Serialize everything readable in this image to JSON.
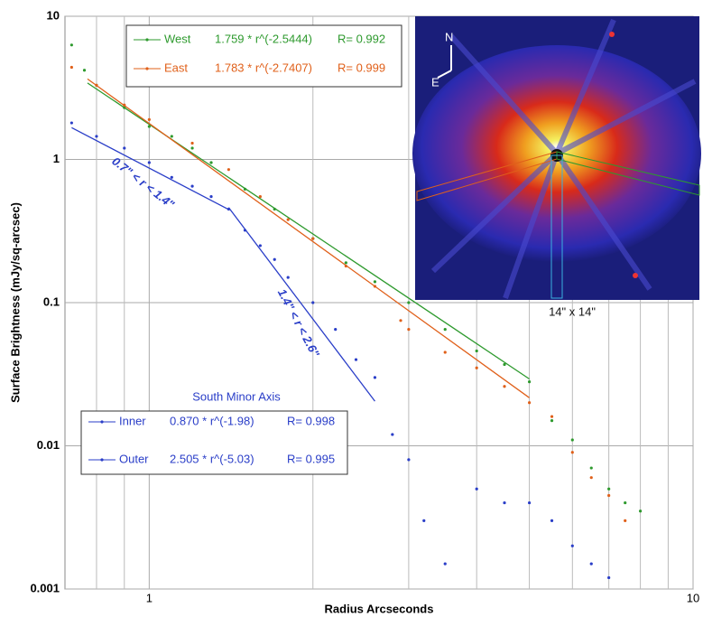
{
  "chart_data": {
    "type": "scatter",
    "xlabel": "Radius Arcseconds",
    "ylabel": "Surface Brightness (mJy/sq-arcsec)",
    "xscale": "log",
    "yscale": "log",
    "xlim": [
      0.7,
      10
    ],
    "ylim": [
      0.001,
      10
    ],
    "xticks": [
      1,
      10
    ],
    "xminorticks": [
      0.8,
      0.9,
      2,
      3,
      4,
      5,
      6,
      7,
      8,
      9
    ],
    "yticks": [
      0.001,
      0.01,
      0.1,
      1,
      10
    ],
    "grid": true,
    "series": [
      {
        "name": "West",
        "color": "#2e9a2e",
        "x": [
          0.72,
          0.76,
          0.8,
          0.9,
          1.0,
          1.1,
          1.2,
          1.3,
          1.5,
          1.7,
          2.0,
          2.3,
          2.6,
          3.0,
          3.5,
          4.0,
          4.5,
          5.0,
          5.5,
          6.0,
          6.5,
          7.0,
          7.5,
          8.0
        ],
        "values": [
          6.3,
          4.2,
          3.3,
          2.3,
          1.7,
          1.45,
          1.2,
          0.95,
          0.62,
          0.45,
          0.28,
          0.19,
          0.14,
          0.1,
          0.065,
          0.046,
          0.037,
          0.028,
          0.015,
          0.011,
          0.007,
          0.005,
          0.004,
          0.0035
        ],
        "fit": {
          "label": "1.759 * r^(-2.5444)",
          "r_label": "R= 0.992",
          "x": [
            0.77,
            5
          ],
          "values": [
            3.42,
            0.0293
          ]
        }
      },
      {
        "name": "East",
        "color": "#e0601a",
        "x": [
          0.72,
          0.8,
          0.9,
          1.0,
          1.2,
          1.4,
          1.6,
          1.8,
          2.0,
          2.3,
          2.6,
          2.9,
          3.0,
          3.5,
          4.0,
          4.5,
          5.0,
          5.5,
          6.0,
          6.5,
          7.0,
          7.5
        ],
        "values": [
          4.4,
          3.3,
          2.4,
          1.9,
          1.3,
          0.85,
          0.55,
          0.38,
          0.28,
          0.18,
          0.13,
          0.075,
          0.065,
          0.045,
          0.035,
          0.026,
          0.02,
          0.016,
          0.009,
          0.006,
          0.0045,
          0.003
        ],
        "fit": {
          "label": "1.783 * r^(-2.7407)",
          "r_label": "R= 0.999",
          "x": [
            0.77,
            5
          ],
          "values": [
            3.65,
            0.02165
          ]
        }
      },
      {
        "name": "Inner",
        "color": "#2a3ec8",
        "x": [
          0.72,
          0.8,
          0.9,
          1.0,
          1.1,
          1.2,
          1.3,
          1.4
        ],
        "values": [
          1.8,
          1.45,
          1.2,
          0.95,
          0.75,
          0.65,
          0.55,
          0.45
        ],
        "fit": {
          "label": "0.870 * r^(-1.98)",
          "r_label": "R= 0.998",
          "x": [
            0.72,
            1.4
          ],
          "values": [
            1.667,
            0.447
          ]
        }
      },
      {
        "name": "Outer",
        "color": "#2a3ec8",
        "x": [
          1.5,
          1.6,
          1.7,
          1.8,
          2.0,
          2.2,
          2.4,
          2.6,
          2.8,
          3.0,
          3.2,
          3.5,
          4.0,
          4.5,
          5.0,
          5.5,
          6.0,
          6.5,
          7.0
        ],
        "values": [
          0.32,
          0.25,
          0.2,
          0.15,
          0.1,
          0.065,
          0.04,
          0.03,
          0.012,
          0.008,
          0.003,
          0.0015,
          0.005,
          0.004,
          0.004,
          0.003,
          0.002,
          0.0015,
          0.0012
        ],
        "fit": {
          "label": "2.505 * r^(-5.03)",
          "r_label": "R= 0.995",
          "x": [
            1.4,
            2.6
          ],
          "values": [
            0.461,
            0.0205
          ]
        }
      }
    ],
    "south_legend_title": "South Minor Axis",
    "annotations": [
      "0.7\" < r < 1.4\"",
      "1.4\" < r < 2.6\""
    ],
    "inset": {
      "caption": "14\" x 14\"",
      "north": "N",
      "east": "E"
    }
  }
}
